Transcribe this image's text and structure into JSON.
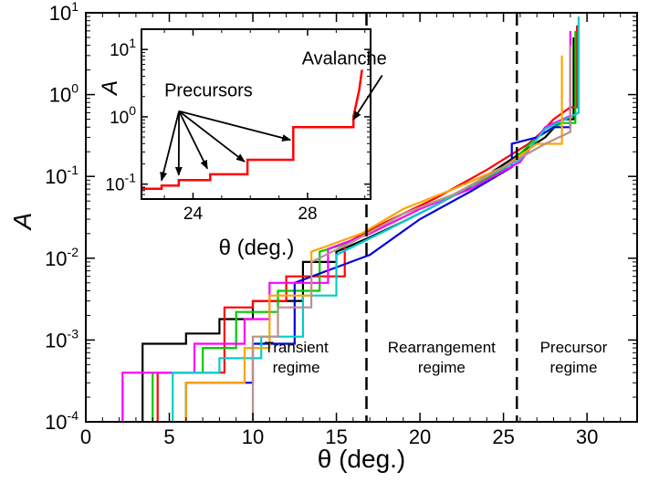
{
  "chart_data": [
    {
      "type": "line",
      "title": "",
      "xlabel": "θ (deg.)",
      "ylabel": "A",
      "xlim": [
        0,
        33
      ],
      "ylim": [
        0.0001,
        10
      ],
      "yscale": "log",
      "xticks": [
        0,
        5,
        10,
        15,
        20,
        25,
        30
      ],
      "yticks": [
        {
          "base": "10",
          "exp": "-4"
        },
        {
          "base": "10",
          "exp": "-3"
        },
        {
          "base": "10",
          "exp": "-2"
        },
        {
          "base": "10",
          "exp": "-1"
        },
        {
          "base": "10",
          "exp": "0"
        },
        {
          "base": "10",
          "exp": "1"
        }
      ],
      "grid": false,
      "vlines": [
        16.8,
        25.8
      ],
      "regions": [
        {
          "line1": "Transient",
          "line2": "regime",
          "x": 12.6
        },
        {
          "line1": "Rearrangement",
          "line2": "regime",
          "x": 21.3
        },
        {
          "line1": "Precursor",
          "line2": "regime",
          "x": 29.2
        }
      ],
      "series": [
        {
          "color": "#000000",
          "x": [
            3.4,
            3.4,
            6.0,
            6.0,
            8.0,
            8.0,
            10.0,
            10.0,
            13.0,
            13.0,
            15.0,
            15.0,
            17.0,
            19.0,
            21.0,
            23.0,
            25.0,
            27.5,
            28.5,
            29.2,
            29.2
          ],
          "y": [
            0.0001,
            0.0009,
            0.0009,
            0.0012,
            0.0012,
            0.0018,
            0.0018,
            0.003,
            0.003,
            0.009,
            0.009,
            0.012,
            0.018,
            0.028,
            0.045,
            0.075,
            0.14,
            0.3,
            0.5,
            0.5,
            5
          ]
        },
        {
          "color": "#ff0000",
          "x": [
            4.3,
            4.3,
            8.3,
            8.3,
            10.0,
            10.0,
            12.0,
            12.0,
            15.5,
            15.5,
            18.0,
            21.0,
            24.0,
            26.5,
            27.3,
            28.0,
            29.0,
            29.4,
            29.4
          ],
          "y": [
            0.0001,
            0.0004,
            0.0004,
            0.0025,
            0.0025,
            0.003,
            0.003,
            0.006,
            0.006,
            0.015,
            0.028,
            0.055,
            0.12,
            0.25,
            0.35,
            0.5,
            0.7,
            0.7,
            7
          ]
        },
        {
          "color": "#00cc00",
          "x": [
            4.0,
            4.0,
            7.0,
            7.0,
            9.0,
            9.0,
            11.5,
            11.5,
            14.0,
            14.0,
            16.0,
            19.0,
            22.0,
            25.0,
            27.0,
            28.5,
            29.3,
            29.3
          ],
          "y": [
            0.0001,
            0.0004,
            0.0004,
            0.0008,
            0.0008,
            0.0022,
            0.0022,
            0.004,
            0.004,
            0.012,
            0.016,
            0.035,
            0.06,
            0.12,
            0.3,
            0.45,
            0.45,
            6
          ]
        },
        {
          "color": "#0000dd",
          "x": [
            6.0,
            6.0,
            10.0,
            10.0,
            12.5,
            12.5,
            17.0,
            20.0,
            23.0,
            25.5,
            25.5,
            27.0,
            28.0,
            29.0,
            29.0
          ],
          "y": [
            0.0001,
            0.0003,
            0.0003,
            0.0009,
            0.0009,
            0.005,
            0.011,
            0.03,
            0.065,
            0.13,
            0.25,
            0.3,
            0.4,
            0.4,
            4
          ]
        },
        {
          "color": "#ff00ff",
          "x": [
            2.2,
            2.2,
            6.5,
            6.5,
            9.5,
            9.5,
            11.0,
            11.0,
            14.5,
            14.5,
            17.0,
            20.0,
            23.0,
            26.0,
            27.5,
            29.0,
            29.0
          ],
          "y": [
            0.0001,
            0.0004,
            0.0004,
            0.0009,
            0.0009,
            0.0018,
            0.0018,
            0.005,
            0.005,
            0.013,
            0.02,
            0.04,
            0.07,
            0.15,
            0.4,
            0.55,
            6
          ]
        },
        {
          "color": "#00cccc",
          "x": [
            5.2,
            5.2,
            8.0,
            8.0,
            10.5,
            10.5,
            13.0,
            13.0,
            15.0,
            15.0,
            18.0,
            21.0,
            24.0,
            26.0,
            27.5,
            29.5,
            29.5
          ],
          "y": [
            0.0001,
            0.0004,
            0.0004,
            0.0006,
            0.0006,
            0.0011,
            0.0011,
            0.0035,
            0.0035,
            0.011,
            0.022,
            0.045,
            0.1,
            0.16,
            0.38,
            0.6,
            9
          ]
        },
        {
          "color": "#ffa500",
          "x": [
            6.0,
            6.0,
            9.5,
            9.5,
            11.0,
            11.0,
            13.5,
            13.5,
            16.5,
            19.0,
            22.0,
            25.0,
            27.0,
            28.5,
            28.5
          ],
          "y": [
            0.0001,
            0.0003,
            0.0003,
            0.0008,
            0.0008,
            0.0035,
            0.0035,
            0.012,
            0.02,
            0.04,
            0.07,
            0.13,
            0.25,
            0.25,
            3
          ]
        },
        {
          "color": "#bc8f8f",
          "x": [
            10.0,
            10.0,
            11.5,
            11.5,
            13.5,
            13.5,
            16.0,
            19.0,
            22.0,
            25.0,
            27.5,
            29.0,
            29.0
          ],
          "y": [
            0.0001,
            0.0011,
            0.0011,
            0.0025,
            0.0025,
            0.009,
            0.016,
            0.035,
            0.06,
            0.13,
            0.25,
            0.35,
            4
          ]
        }
      ]
    },
    {
      "type": "line",
      "title": "",
      "xlabel": "θ (deg.)",
      "ylabel": "A",
      "xlim": [
        22.2,
        30.2
      ],
      "ylim": [
        0.06,
        20
      ],
      "yscale": "log",
      "xticks": [
        24,
        28
      ],
      "yticks": [
        {
          "base": "10",
          "exp": "-1"
        },
        {
          "base": "10",
          "exp": "0"
        },
        {
          "base": "10",
          "exp": "1"
        }
      ],
      "grid": false,
      "annotations": [
        {
          "text": "Precursors",
          "x": 23.0,
          "y": 2.0,
          "targets": [
            [
              22.9,
              0.1
            ],
            [
              23.5,
              0.12
            ],
            [
              24.5,
              0.15
            ],
            [
              25.8,
              0.19
            ],
            [
              27.4,
              0.4
            ]
          ]
        },
        {
          "text": "Avalanche",
          "x": 27.8,
          "y": 6.0,
          "targets": [
            [
              29.6,
              0.8
            ]
          ]
        }
      ],
      "series": [
        {
          "color": "#ff0000",
          "x": [
            22.2,
            22.9,
            22.9,
            23.5,
            23.5,
            24.6,
            24.6,
            25.9,
            25.9,
            27.5,
            27.5,
            29.6,
            29.6,
            29.8,
            29.9
          ],
          "y": [
            0.085,
            0.085,
            0.095,
            0.095,
            0.115,
            0.115,
            0.14,
            0.14,
            0.23,
            0.23,
            0.7,
            0.7,
            1.0,
            2.5,
            5.0
          ]
        }
      ]
    }
  ]
}
